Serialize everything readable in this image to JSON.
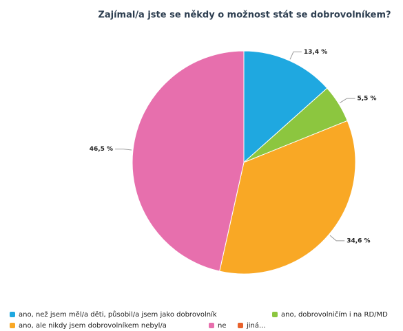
{
  "chart_data": {
    "type": "pie",
    "title": "Zajímal/a jste se někdy o možnost stát se dobrovolníkem?",
    "categories": [
      "ano, než jsem měl/a děti, působil/a jsem jako dobrovolník",
      "ano, dobrovolničím i na RD/MD",
      "ano, ale nikdy jsem dobrovolníkem nebyl/a",
      "ne",
      "jiná..."
    ],
    "values": [
      13.4,
      5.5,
      34.6,
      46.5,
      0
    ],
    "value_labels": [
      "13,4 %",
      "5,5 %",
      "34,6 %",
      "46,5 %",
      null
    ],
    "colors": [
      "#1fa8e0",
      "#8cc63f",
      "#f9a825",
      "#e76fad",
      "#e8622c"
    ]
  }
}
